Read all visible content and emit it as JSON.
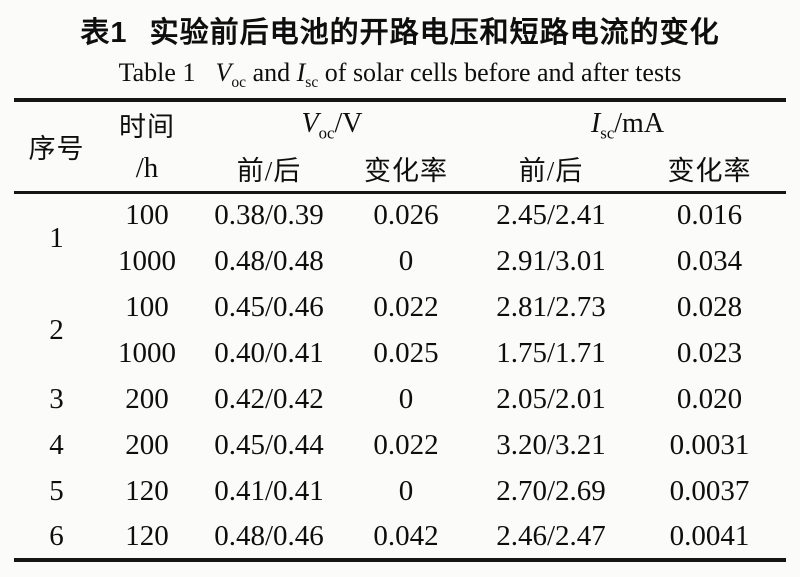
{
  "caption_zh": {
    "label": "表1",
    "text": "实验前后电池的开路电压和短路电流的变化"
  },
  "caption_en": {
    "prefix": "Table 1",
    "voc_symbol": "V",
    "voc_sub": "oc",
    "mid": "and",
    "isc_symbol": "I",
    "isc_sub": "sc",
    "suffix": "of solar cells before and after tests"
  },
  "table": {
    "headers": {
      "serial": "序号",
      "time_top": "时间",
      "time_bottom": "/h",
      "voc_group": {
        "symbol": "V",
        "sub": "oc",
        "unit": "/V"
      },
      "isc_group": {
        "symbol": "I",
        "sub": "sc",
        "unit": "/mA"
      },
      "voc_before_after": "前/后",
      "voc_change_rate": "变化率",
      "isc_before_after": "前/后",
      "isc_change_rate": "变化率"
    },
    "rows": [
      {
        "serial": "1",
        "span": 2,
        "time": "100",
        "voc": "0.38/0.39",
        "voc_rate": "0.026",
        "isc": "2.45/2.41",
        "isc_rate": "0.016"
      },
      {
        "time": "1000",
        "voc": "0.48/0.48",
        "voc_rate": "0",
        "isc": "2.91/3.01",
        "isc_rate": "0.034"
      },
      {
        "serial": "2",
        "span": 2,
        "time": "100",
        "voc": "0.45/0.46",
        "voc_rate": "0.022",
        "isc": "2.81/2.73",
        "isc_rate": "0.028"
      },
      {
        "time": "1000",
        "voc": "0.40/0.41",
        "voc_rate": "0.025",
        "isc": "1.75/1.71",
        "isc_rate": "0.023"
      },
      {
        "serial": "3",
        "span": 1,
        "time": "200",
        "voc": "0.42/0.42",
        "voc_rate": "0",
        "isc": "2.05/2.01",
        "isc_rate": "0.020"
      },
      {
        "serial": "4",
        "span": 1,
        "time": "200",
        "voc": "0.45/0.44",
        "voc_rate": "0.022",
        "isc": "3.20/3.21",
        "isc_rate": "0.0031"
      },
      {
        "serial": "5",
        "span": 1,
        "time": "120",
        "voc": "0.41/0.41",
        "voc_rate": "0",
        "isc": "2.70/2.69",
        "isc_rate": "0.0037"
      },
      {
        "serial": "6",
        "span": 1,
        "time": "120",
        "voc": "0.48/0.46",
        "voc_rate": "0.042",
        "isc": "2.46/2.47",
        "isc_rate": "0.0041"
      }
    ]
  },
  "chart_data": {
    "type": "table",
    "title": "表1 实验前后电池的开路电压和短路电流的变化 / Table 1 Voc and Isc of solar cells before and after tests",
    "columns": [
      "序号",
      "时间/h",
      "Voc/V 前/后",
      "Voc/V 变化率",
      "Isc/mA 前/后",
      "Isc/mA 变化率"
    ],
    "rows": [
      [
        "1",
        "100",
        "0.38/0.39",
        "0.026",
        "2.45/2.41",
        "0.016"
      ],
      [
        "1",
        "1000",
        "0.48/0.48",
        "0",
        "2.91/3.01",
        "0.034"
      ],
      [
        "2",
        "100",
        "0.45/0.46",
        "0.022",
        "2.81/2.73",
        "0.028"
      ],
      [
        "2",
        "1000",
        "0.40/0.41",
        "0.025",
        "1.75/1.71",
        "0.023"
      ],
      [
        "3",
        "200",
        "0.42/0.42",
        "0",
        "2.05/2.01",
        "0.020"
      ],
      [
        "4",
        "200",
        "0.45/0.44",
        "0.022",
        "3.20/3.21",
        "0.0031"
      ],
      [
        "5",
        "120",
        "0.41/0.41",
        "0",
        "2.70/2.69",
        "0.0037"
      ],
      [
        "6",
        "120",
        "0.48/0.46",
        "0.042",
        "2.46/2.47",
        "0.0041"
      ]
    ]
  }
}
